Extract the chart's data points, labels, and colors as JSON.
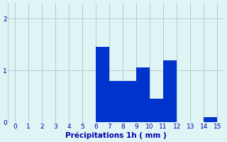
{
  "x_values": [
    6.5,
    7.5,
    8.5,
    9.5,
    10.5,
    11.5,
    14.5
  ],
  "bar_heights": [
    1.45,
    0.8,
    0.8,
    1.05,
    0.45,
    1.2,
    0.1
  ],
  "bar_color": "#0033cc",
  "background_color": "#dff4f4",
  "grid_color": "#aac8c8",
  "axis_label": "Précipitations 1h ( mm )",
  "xlim": [
    -0.5,
    15.5
  ],
  "ylim": [
    0,
    2.3
  ],
  "yticks": [
    0,
    1,
    2
  ],
  "xticks": [
    0,
    1,
    2,
    3,
    4,
    5,
    6,
    7,
    8,
    9,
    10,
    11,
    12,
    13,
    14,
    15
  ],
  "tick_color": "#0000aa",
  "tick_fontsize": 6.5,
  "label_fontsize": 7.5,
  "bar_width": 1.0
}
